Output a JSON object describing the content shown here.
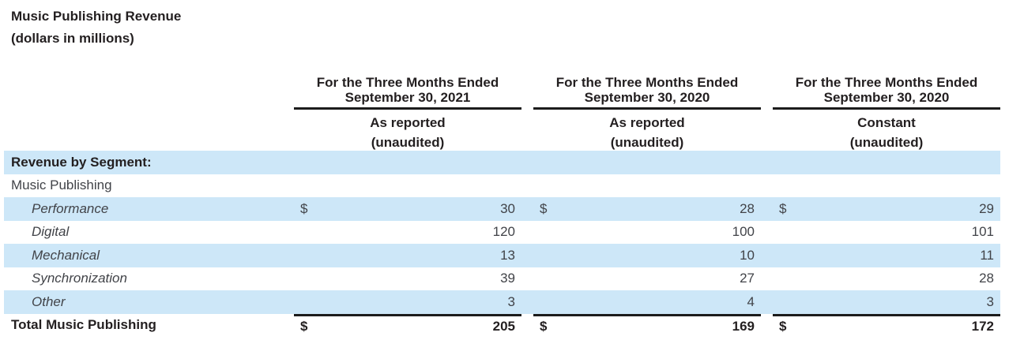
{
  "title": {
    "line1": "Music Publishing Revenue",
    "line2": "(dollars in millions)"
  },
  "columns": [
    {
      "period_line1": "For the Three Months Ended",
      "period_line2": "September 30, 2021",
      "basis": "As reported",
      "note": "(unaudited)"
    },
    {
      "period_line1": "For the Three Months Ended",
      "period_line2": "September 30, 2020",
      "basis": "As reported",
      "note": "(unaudited)"
    },
    {
      "period_line1": "For the Three Months Ended",
      "period_line2": "September 30, 2020",
      "basis": "Constant",
      "note": "(unaudited)"
    }
  ],
  "rows": [
    {
      "label": "Revenue by Segment:"
    },
    {
      "label": "Music Publishing"
    },
    {
      "label": "Performance",
      "currency": "$",
      "values": [
        "30",
        "28",
        "29"
      ]
    },
    {
      "label": "Digital",
      "values": [
        "120",
        "100",
        "101"
      ]
    },
    {
      "label": "Mechanical",
      "values": [
        "13",
        "10",
        "11"
      ]
    },
    {
      "label": "Synchronization",
      "values": [
        "39",
        "27",
        "28"
      ]
    },
    {
      "label": "Other",
      "values": [
        "3",
        "4",
        "3"
      ]
    },
    {
      "label": "Total Music Publishing",
      "currency": "$",
      "values": [
        "205",
        "169",
        "172"
      ]
    }
  ],
  "colors": {
    "stripe": "#cde7f8",
    "rule": "#1c1c1c",
    "heading_text": "#231f20",
    "body_text": "#414348"
  }
}
